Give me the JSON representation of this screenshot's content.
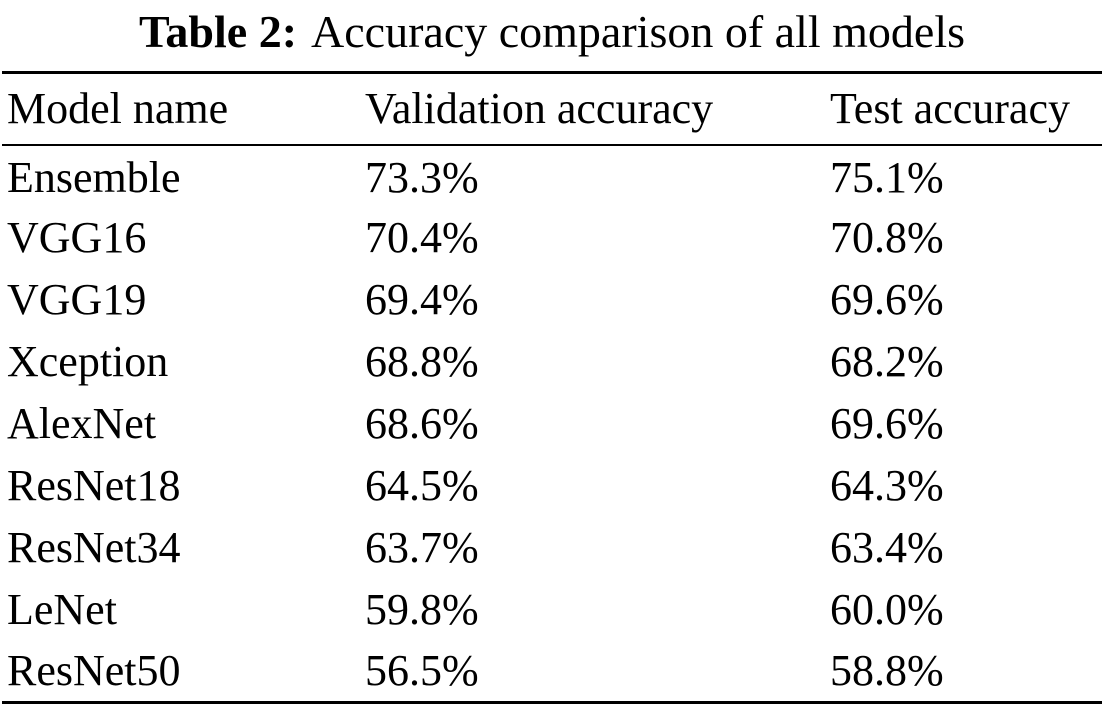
{
  "caption": {
    "label": "Table 2:",
    "title": "Accuracy comparison of all models"
  },
  "table": {
    "headers": [
      "Model name",
      "Validation accuracy",
      "Test accuracy"
    ],
    "rows": [
      {
        "model": "Ensemble",
        "val": "73.3%",
        "test": "75.1%"
      },
      {
        "model": "VGG16",
        "val": "70.4%",
        "test": "70.8%"
      },
      {
        "model": "VGG19",
        "val": "69.4%",
        "test": "69.6%"
      },
      {
        "model": "Xception",
        "val": "68.8%",
        "test": "68.2%"
      },
      {
        "model": "AlexNet",
        "val": "68.6%",
        "test": "69.6%"
      },
      {
        "model": "ResNet18",
        "val": "64.5%",
        "test": "64.3%"
      },
      {
        "model": "ResNet34",
        "val": "63.7%",
        "test": "63.4%"
      },
      {
        "model": "LeNet",
        "val": "59.8%",
        "test": "60.0%"
      },
      {
        "model": "ResNet50",
        "val": "56.5%",
        "test": "58.8%"
      }
    ]
  },
  "colors": {
    "text": "#000000",
    "background": "#ffffff",
    "rule": "#000000"
  }
}
